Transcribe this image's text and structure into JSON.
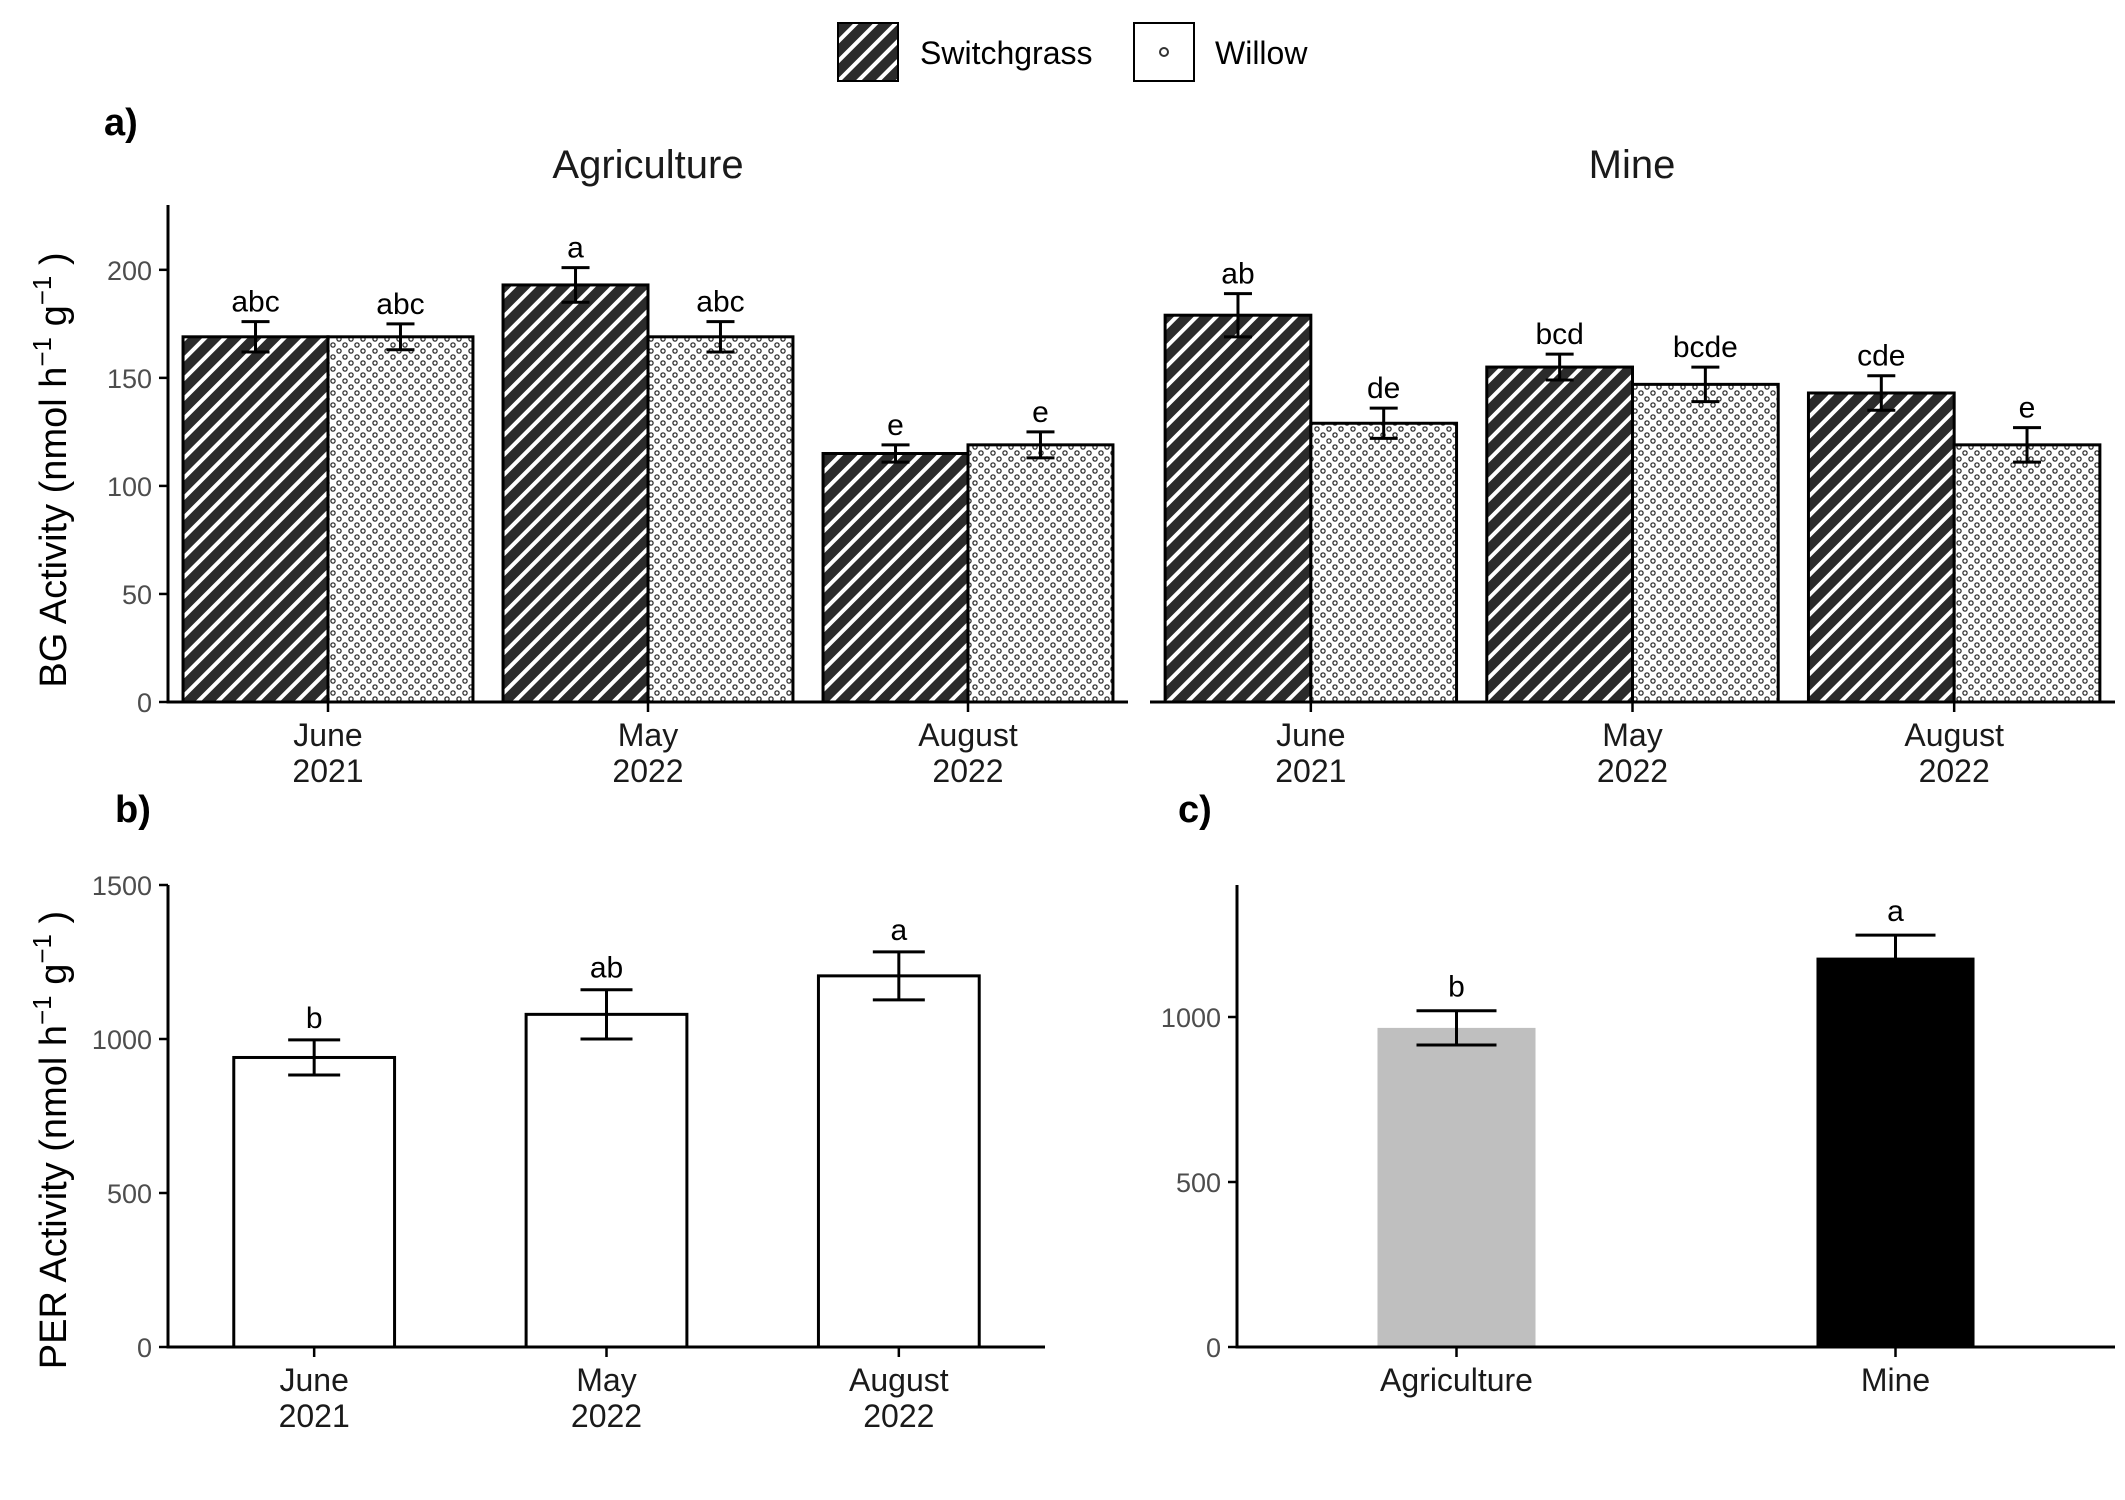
{
  "legend": {
    "items": [
      {
        "name": "Switchgrass",
        "pattern": "hatch-icon"
      },
      {
        "name": "Willow",
        "pattern": "dots-icon"
      }
    ]
  },
  "panel_tags": {
    "a": "a)",
    "b": "b)",
    "c": "c)"
  },
  "y_titles": {
    "bg": {
      "base": "BG Activity (nmol h",
      "sup1": "−1",
      "mid": " g",
      "sup2": "−1",
      "end": " )"
    },
    "per": {
      "base": "PER Activity (nmol h",
      "sup1": "−1",
      "mid": " g",
      "sup2": "−1",
      "end": " )"
    }
  },
  "colors": {
    "switchgrass_fill": "#2b2b2b",
    "willow_fill": "#ffffff",
    "per_bar_fill": "#ffffff",
    "agriculture_fill": "#bfbfbf",
    "mine_fill": "#000000",
    "axis": "#000000"
  },
  "chart_data": [
    {
      "type": "bar",
      "panel": "a",
      "facet": "Agriculture",
      "categories": [
        "June\n2021",
        "May\n2022",
        "August\n2022"
      ],
      "series": [
        {
          "name": "Switchgrass",
          "values": [
            169,
            193,
            115
          ],
          "errors": [
            7,
            8,
            4
          ],
          "letters": [
            "abc",
            "a",
            "e"
          ]
        },
        {
          "name": "Willow",
          "values": [
            169,
            169,
            119
          ],
          "errors": [
            6,
            7,
            6
          ],
          "letters": [
            "abc",
            "abc",
            "e"
          ]
        }
      ],
      "ylim": [
        0,
        230
      ],
      "yticks": [
        0,
        50,
        100,
        150,
        200
      ]
    },
    {
      "type": "bar",
      "panel": "a",
      "facet": "Mine",
      "categories": [
        "June\n2021",
        "May\n2022",
        "August\n2022"
      ],
      "series": [
        {
          "name": "Switchgrass",
          "values": [
            179,
            155,
            143
          ],
          "errors": [
            10,
            6,
            8
          ],
          "letters": [
            "ab",
            "bcd",
            "cde"
          ]
        },
        {
          "name": "Willow",
          "values": [
            129,
            147,
            119
          ],
          "errors": [
            7,
            8,
            8
          ],
          "letters": [
            "de",
            "bcde",
            "e"
          ]
        }
      ],
      "ylim": [
        0,
        230
      ],
      "yticks": [
        0,
        50,
        100,
        150,
        200
      ]
    },
    {
      "type": "bar",
      "panel": "b",
      "categories": [
        "June\n2021",
        "May\n2022",
        "August\n2022"
      ],
      "values": [
        940,
        1080,
        1205
      ],
      "errors": [
        57,
        80,
        78
      ],
      "letters": [
        "b",
        "ab",
        "a"
      ],
      "ylim": [
        0,
        1500
      ],
      "yticks": [
        0,
        500,
        1000,
        1500
      ]
    },
    {
      "type": "bar",
      "panel": "c",
      "categories": [
        "Agriculture",
        "Mine"
      ],
      "values": [
        967,
        1180
      ],
      "errors": [
        52,
        68
      ],
      "letters": [
        "b",
        "a"
      ],
      "ylim": [
        0,
        1400
      ],
      "yticks": [
        0,
        500,
        1000
      ]
    }
  ]
}
